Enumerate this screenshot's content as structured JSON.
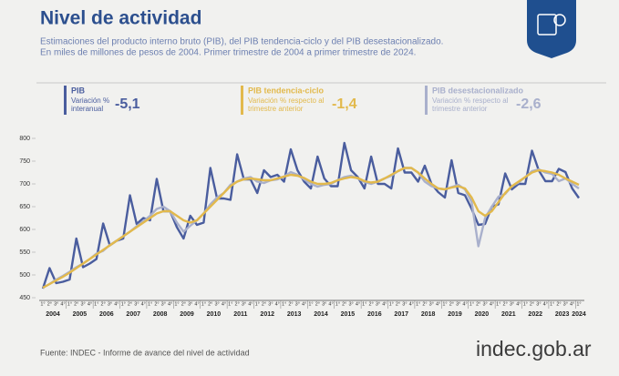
{
  "chart_data": {
    "type": "line",
    "title": "Nivel de actividad",
    "subtitle": [
      "Estimaciones del producto interno bruto (PIB), del PIB tendencia-ciclo y del PIB desestacionalizado.",
      "En miles de millones de pesos de 2004. Primer trimestre de 2004 a primer trimestre de 2024."
    ],
    "categories": [
      "1°",
      "2°",
      "3°",
      "4°",
      "1°",
      "2°",
      "3°",
      "4°",
      "1°",
      "2°",
      "3°",
      "4°",
      "1°",
      "2°",
      "3°",
      "4°",
      "1°",
      "2°",
      "3°",
      "4°",
      "1°",
      "2°",
      "3°",
      "4°",
      "1°",
      "2°",
      "3°",
      "4°",
      "1°",
      "2°",
      "3°",
      "4°",
      "1°",
      "2°",
      "3°",
      "4°",
      "1°",
      "2°",
      "3°",
      "4°",
      "1°",
      "2°",
      "3°",
      "4°",
      "1°",
      "2°",
      "3°",
      "4°",
      "1°",
      "2°",
      "3°",
      "4°",
      "1°",
      "2°",
      "3°",
      "4°",
      "1°",
      "2°",
      "3°",
      "4°",
      "1°",
      "2°",
      "3°",
      "4°",
      "1°",
      "2°",
      "3°",
      "4°",
      "1°",
      "2°",
      "3°",
      "4°",
      "1°",
      "2°",
      "3°",
      "4°",
      "1°",
      "2°",
      "3°",
      "4°",
      "1°"
    ],
    "years": [
      "2004",
      "2005",
      "2006",
      "2007",
      "2008",
      "2009",
      "2010",
      "2011",
      "2012",
      "2013",
      "2014",
      "2015",
      "2016",
      "2017",
      "2018",
      "2019",
      "2020",
      "2021",
      "2022",
      "2023",
      "2024"
    ],
    "series": [
      {
        "name": "PIB",
        "color": "#4a5d9e",
        "values": [
          470,
          515,
          482,
          485,
          490,
          580,
          517,
          525,
          535,
          613,
          565,
          575,
          580,
          675,
          612,
          625,
          620,
          711,
          640,
          640,
          605,
          580,
          630,
          610,
          615,
          735,
          668,
          668,
          665,
          765,
          710,
          710,
          680,
          730,
          715,
          720,
          705,
          776,
          730,
          705,
          690,
          760,
          712,
          695,
          695,
          790,
          730,
          715,
          690,
          760,
          700,
          700,
          690,
          778,
          725,
          725,
          705,
          740,
          700,
          682,
          670,
          752,
          680,
          675,
          645,
          610,
          612,
          650,
          655,
          723,
          688,
          700,
          700,
          773,
          730,
          706,
          706,
          733,
          726,
          690,
          669
        ]
      },
      {
        "name": "PIB tendencia-ciclo",
        "color": "#e2b94c",
        "values": [
          472,
          480,
          488,
          496,
          505,
          515,
          525,
          535,
          545,
          555,
          565,
          575,
          585,
          595,
          605,
          615,
          625,
          635,
          640,
          640,
          630,
          620,
          615,
          620,
          635,
          650,
          665,
          680,
          695,
          705,
          710,
          712,
          710,
          708,
          708,
          712,
          716,
          720,
          718,
          713,
          705,
          700,
          700,
          702,
          708,
          712,
          715,
          713,
          706,
          703,
          705,
          712,
          720,
          728,
          735,
          735,
          725,
          712,
          700,
          690,
          688,
          692,
          695,
          690,
          670,
          640,
          630,
          640,
          660,
          680,
          695,
          705,
          715,
          725,
          730,
          728,
          725,
          720,
          712,
          705,
          698
        ]
      },
      {
        "name": "PIB desestacionalizado",
        "color": "#a9b0cc",
        "values": [
          472,
          480,
          490,
          498,
          507,
          517,
          525,
          535,
          547,
          553,
          566,
          575,
          585,
          595,
          607,
          618,
          630,
          645,
          650,
          640,
          615,
          595,
          608,
          620,
          635,
          655,
          670,
          680,
          698,
          705,
          712,
          715,
          705,
          702,
          708,
          710,
          716,
          726,
          720,
          710,
          700,
          694,
          698,
          700,
          708,
          715,
          718,
          712,
          704,
          700,
          705,
          712,
          718,
          728,
          735,
          735,
          725,
          705,
          695,
          690,
          688,
          693,
          698,
          688,
          660,
          563,
          625,
          650,
          672,
          678,
          695,
          703,
          715,
          728,
          732,
          725,
          722,
          706,
          712,
          700,
          690
        ]
      }
    ],
    "ylim": [
      450,
      800
    ],
    "yticks": [
      450,
      500,
      550,
      600,
      650,
      700,
      750,
      800
    ],
    "grid": false
  },
  "indicators": [
    {
      "label": [
        "Variación %",
        "interanual"
      ],
      "value": "-5,1"
    },
    {
      "label": [
        "Variación % respecto al",
        "trimestre anterior"
      ],
      "value": "-1,4"
    },
    {
      "label": [
        "Variación % respecto al",
        "trimestre anterior"
      ],
      "value": "-2,6"
    }
  ],
  "source": "Fuente: INDEC - Informe de avance del nivel de actividad",
  "logo": "indec.gob.ar"
}
